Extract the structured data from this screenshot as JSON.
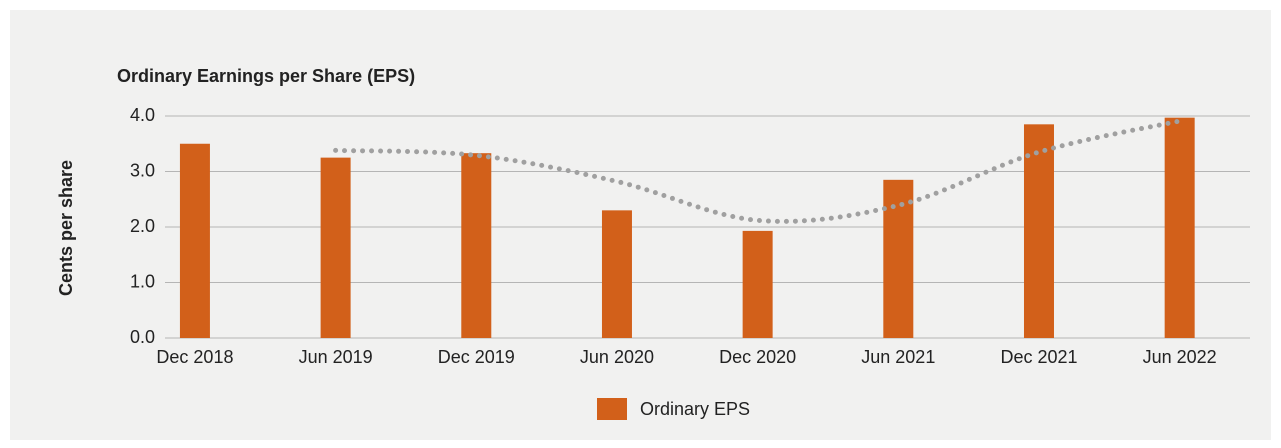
{
  "chart_data": {
    "type": "bar",
    "title": "Ordinary Earnings per Share (EPS)",
    "y_label": "Cents per share",
    "categories": [
      "Dec 2018",
      "Jun 2019",
      "Dec 2019",
      "Jun 2020",
      "Dec 2020",
      "Jun 2021",
      "Dec 2021",
      "Jun 2022"
    ],
    "series": [
      {
        "name": "Ordinary EPS",
        "color": "#d2601a",
        "values": [
          3.5,
          3.25,
          3.33,
          2.3,
          1.93,
          2.85,
          3.85,
          3.97
        ]
      },
      {
        "type": "line",
        "style": "dotted",
        "color": "#a0a0a0",
        "values": [
          null,
          3.38,
          3.29,
          2.82,
          2.12,
          2.39,
          3.35,
          3.91
        ]
      }
    ],
    "ylim": [
      0,
      4
    ],
    "yticks": [
      {
        "value": 0,
        "label": "0.0"
      },
      {
        "value": 1,
        "label": "1.0"
      },
      {
        "value": 2,
        "label": "2.0"
      },
      {
        "value": 3,
        "label": "3.0"
      },
      {
        "value": 4,
        "label": "4.0"
      }
    ],
    "grid": true,
    "legend": "bottom"
  }
}
